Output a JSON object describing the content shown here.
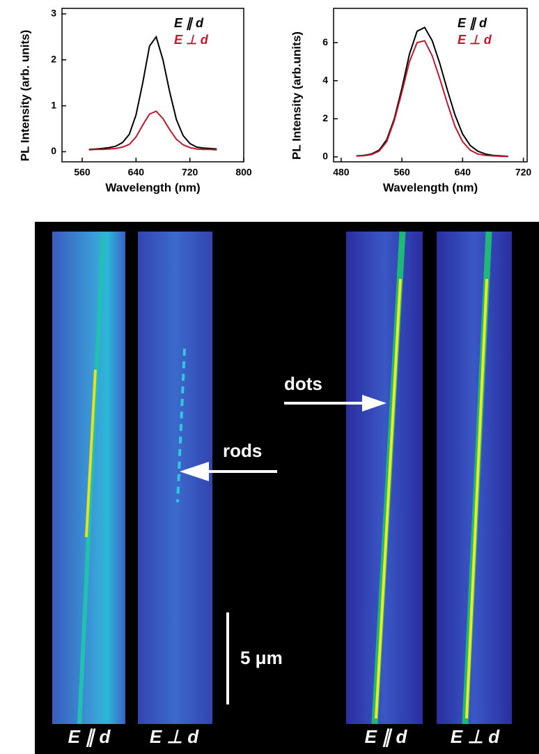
{
  "chart_data": [
    {
      "type": "line",
      "y_label": "PL Intensity (arb. units)",
      "x_label": "Wavelength (nm)",
      "x": [
        570,
        580,
        590,
        600,
        610,
        620,
        630,
        640,
        650,
        660,
        670,
        680,
        690,
        700,
        710,
        720,
        730,
        740,
        750,
        760
      ],
      "series": [
        {
          "name": "E ∥ d",
          "color": "#000000",
          "values": [
            0.05,
            0.06,
            0.07,
            0.09,
            0.12,
            0.2,
            0.38,
            0.8,
            1.5,
            2.3,
            2.5,
            2.0,
            1.3,
            0.7,
            0.35,
            0.18,
            0.1,
            0.08,
            0.07,
            0.06
          ]
        },
        {
          "name": "E ⊥ d",
          "color": "#c0182a",
          "values": [
            0.04,
            0.05,
            0.05,
            0.06,
            0.07,
            0.1,
            0.16,
            0.32,
            0.58,
            0.82,
            0.88,
            0.72,
            0.48,
            0.27,
            0.15,
            0.09,
            0.06,
            0.05,
            0.05,
            0.04
          ]
        }
      ],
      "xlim": [
        530,
        800
      ],
      "xticks": [
        560,
        640,
        720,
        800
      ],
      "ylim": [
        -0.22,
        3.12
      ],
      "yticks": [
        0,
        1,
        2,
        3
      ]
    },
    {
      "type": "line",
      "y_label": "PL Intensity (arb.units)",
      "x_label": "Wavelength (nm)",
      "x": [
        500,
        510,
        520,
        530,
        540,
        550,
        560,
        570,
        580,
        590,
        600,
        610,
        620,
        630,
        640,
        650,
        660,
        670,
        680,
        690,
        700
      ],
      "series": [
        {
          "name": "E ∥ d",
          "color": "#000000",
          "values": [
            0.05,
            0.08,
            0.15,
            0.35,
            0.9,
            2.0,
            3.6,
            5.4,
            6.6,
            6.8,
            6.1,
            4.9,
            3.5,
            2.2,
            1.2,
            0.6,
            0.3,
            0.15,
            0.08,
            0.05,
            0.03
          ]
        },
        {
          "name": "E ⊥ d",
          "color": "#c0182a",
          "values": [
            0.04,
            0.06,
            0.12,
            0.3,
            0.8,
            1.9,
            3.4,
            5.0,
            6.0,
            6.1,
            5.3,
            4.1,
            2.8,
            1.6,
            0.8,
            0.35,
            0.15,
            0.08,
            0.05,
            0.03,
            0.02
          ]
        }
      ],
      "xlim": [
        470,
        725
      ],
      "xticks": [
        480,
        560,
        640,
        720
      ],
      "ylim": [
        -0.26,
        7.8
      ],
      "yticks": [
        0,
        2,
        4,
        6
      ]
    }
  ],
  "image_panel": {
    "annotations": [
      "rods",
      "dots"
    ],
    "scale_bar": "5 μm",
    "strip_labels": [
      "E ∥ d",
      "E ⊥ d",
      "E ∥ d",
      "E ⊥ d"
    ]
  }
}
